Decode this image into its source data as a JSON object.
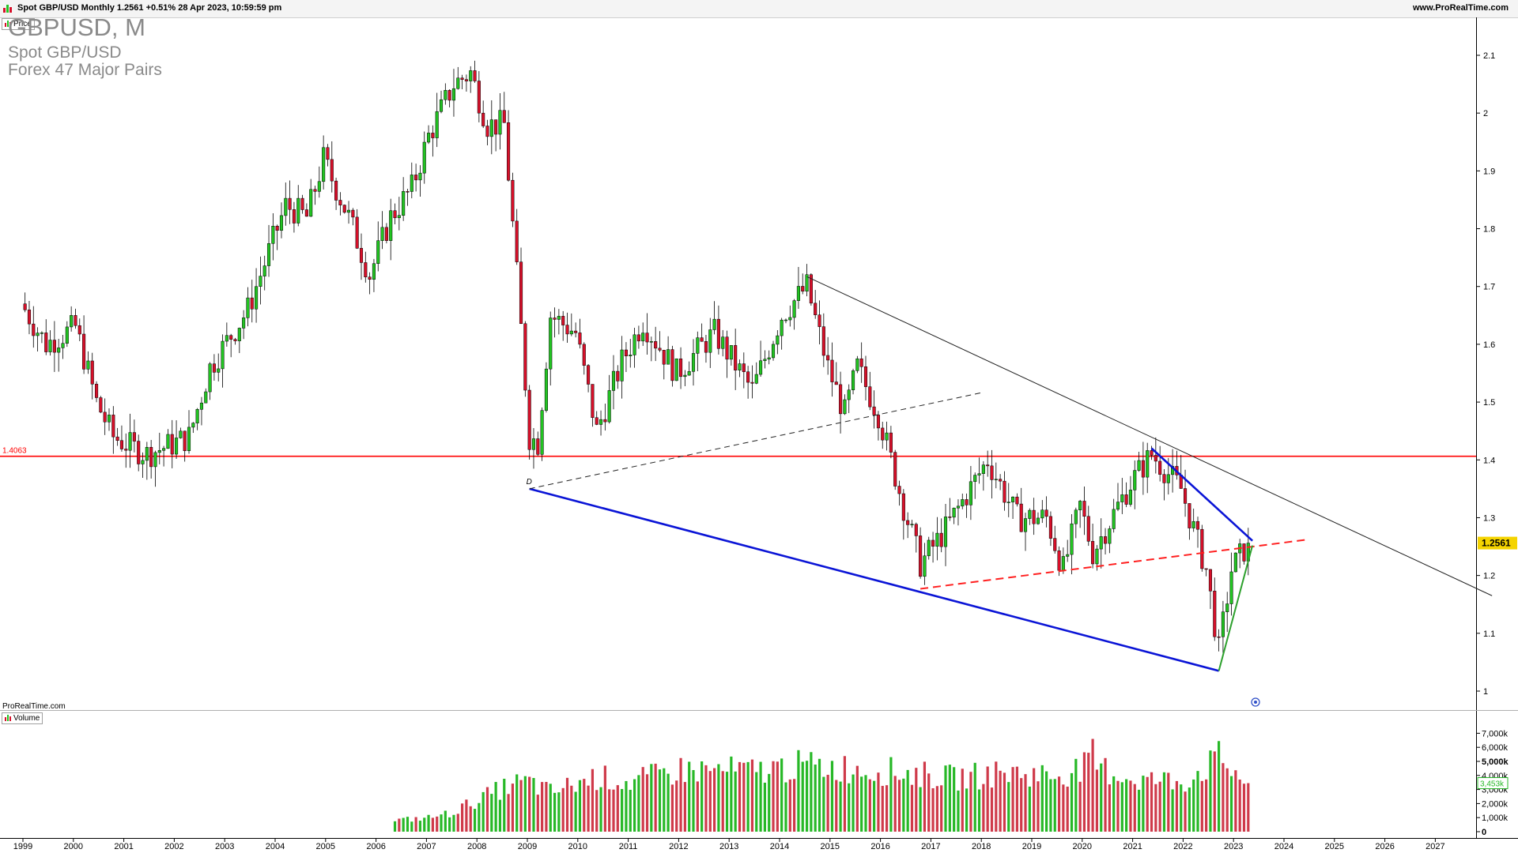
{
  "header": {
    "title": "Spot GBP/USD Monthly 1.2561 +0.51% 28 Apr 2023, 10:59:59 pm",
    "brand": "www.ProRealTime.com"
  },
  "watermark": {
    "symbol": "GBPUSD, M",
    "name": "Spot GBP/USD",
    "group": "Forex 47 Major Pairs"
  },
  "price_panel": {
    "label": "Price"
  },
  "volume_panel": {
    "label": "Volume"
  },
  "footer_brand": "ProRealTime.com",
  "colors": {
    "up": "#22c422",
    "down": "#d8102a",
    "volume_up": "#27b827",
    "volume_down": "#cf3a4a",
    "support": "#ff0000",
    "trend_blue": "#0a14d6",
    "trend_black": "#222222",
    "trend_green": "#2ca02c",
    "dashed_red": "#ff2020",
    "last_price_bg": "#f5d400"
  },
  "chart_data": {
    "type": "candlestick",
    "timeframe": "Monthly",
    "x_range": [
      "1998-12",
      "2027-12"
    ],
    "x_tick_labels": [
      "1999",
      "2000",
      "2001",
      "2002",
      "2003",
      "2004",
      "2005",
      "2006",
      "2007",
      "2008",
      "2009",
      "2010",
      "2011",
      "2012",
      "2013",
      "2014",
      "2015",
      "2016",
      "2017",
      "2018",
      "2019",
      "2020",
      "2021",
      "2022",
      "2023",
      "2024",
      "2025",
      "2026",
      "2027"
    ],
    "y_price_range": [
      0.99,
      2.12
    ],
    "y_price_ticks": [
      1,
      1.1,
      1.2,
      1.3,
      1.4,
      1.5,
      1.6,
      1.7,
      1.8,
      1.9,
      2,
      2.1
    ],
    "y_price_tick_labels": [
      "1",
      "1.1",
      "1.2",
      "1.3",
      "1.4",
      "1.5",
      "1.6",
      "1.7",
      "1.8",
      "1.9",
      "2",
      "2.1"
    ],
    "last_price": 1.2561,
    "last_price_label": "1.2561",
    "support_level": 1.4063,
    "support_label": "1.4063",
    "price_keypoints": [
      [
        "1999-01",
        1.66
      ],
      [
        "1999-06",
        1.6
      ],
      [
        "2000-01",
        1.63
      ],
      [
        "2000-06",
        1.5
      ],
      [
        "2000-10",
        1.44
      ],
      [
        "2001-03",
        1.42
      ],
      [
        "2001-06",
        1.41
      ],
      [
        "2002-01",
        1.43
      ],
      [
        "2002-04",
        1.44
      ],
      [
        "2002-09",
        1.56
      ],
      [
        "2003-06",
        1.66
      ],
      [
        "2003-12",
        1.78
      ],
      [
        "2004-03",
        1.84
      ],
      [
        "2004-08",
        1.82
      ],
      [
        "2004-12",
        1.92
      ],
      [
        "2005-06",
        1.82
      ],
      [
        "2005-11",
        1.72
      ],
      [
        "2006-04",
        1.82
      ],
      [
        "2006-09",
        1.87
      ],
      [
        "2007-01",
        1.96
      ],
      [
        "2007-07",
        2.05
      ],
      [
        "2007-11",
        2.07
      ],
      [
        "2008-03",
        1.98
      ],
      [
        "2008-07",
        1.98
      ],
      [
        "2008-10",
        1.72
      ],
      [
        "2009-01",
        1.44
      ],
      [
        "2009-03",
        1.43
      ],
      [
        "2009-06",
        1.65
      ],
      [
        "2009-12",
        1.62
      ],
      [
        "2010-05",
        1.45
      ],
      [
        "2010-11",
        1.57
      ],
      [
        "2011-04",
        1.64
      ],
      [
        "2011-12",
        1.55
      ],
      [
        "2012-09",
        1.62
      ],
      [
        "2013-06",
        1.52
      ],
      [
        "2014-01",
        1.65
      ],
      [
        "2014-07",
        1.7
      ],
      [
        "2014-12",
        1.56
      ],
      [
        "2015-04",
        1.48
      ],
      [
        "2015-07",
        1.56
      ],
      [
        "2015-12",
        1.48
      ],
      [
        "2016-06",
        1.32
      ],
      [
        "2016-10",
        1.22
      ],
      [
        "2017-04",
        1.28
      ],
      [
        "2017-09",
        1.34
      ],
      [
        "2018-02",
        1.4
      ],
      [
        "2018-09",
        1.3
      ],
      [
        "2019-04",
        1.3
      ],
      [
        "2019-08",
        1.21
      ],
      [
        "2019-12",
        1.32
      ],
      [
        "2020-03",
        1.24
      ],
      [
        "2020-12",
        1.36
      ],
      [
        "2021-05",
        1.41
      ],
      [
        "2021-12",
        1.35
      ],
      [
        "2022-06",
        1.21
      ],
      [
        "2022-09",
        1.07
      ],
      [
        "2022-12",
        1.21
      ],
      [
        "2023-04",
        1.2561
      ]
    ],
    "annotations": [
      {
        "type": "horizontal",
        "y": 1.4063,
        "style": "solid",
        "color": "red"
      },
      {
        "type": "trendline",
        "from": [
          "2014-07",
          1.717
        ],
        "to": [
          "2028-02",
          1.165
        ],
        "color": "black",
        "style": "solid"
      },
      {
        "type": "trendline",
        "from": [
          "2009-01",
          1.35
        ],
        "to": [
          "2022-09",
          1.035
        ],
        "color": "blue",
        "style": "solid"
      },
      {
        "type": "trendline",
        "from": [
          "2021-05",
          1.42
        ],
        "to": [
          "2023-05",
          1.26
        ],
        "color": "blue",
        "style": "solid"
      },
      {
        "type": "trendline",
        "from": [
          "2009-01",
          1.35
        ],
        "to": [
          "2018-01",
          1.517
        ],
        "color": "black",
        "style": "dashed"
      },
      {
        "type": "trendline",
        "from": [
          "2016-10",
          1.177
        ],
        "to": [
          "2024-06",
          1.262
        ],
        "color": "red",
        "style": "dashed"
      },
      {
        "type": "trendline",
        "from": [
          "2022-09",
          1.035
        ],
        "to": [
          "2023-05",
          1.252
        ],
        "color": "green",
        "style": "solid"
      }
    ],
    "markers": [
      "D"
    ],
    "volume": {
      "y_range": [
        0,
        7500
      ],
      "y_ticks": [
        0,
        1000,
        2000,
        3000,
        4000,
        5000,
        6000,
        7000
      ],
      "y_tick_labels": [
        "0",
        "1,000k",
        "2,000k",
        "3,000k",
        "4,000k",
        "5,000k",
        "6,000k",
        "7,000k"
      ],
      "last_value_label": "3,453k",
      "start": "2006-05",
      "keypoints": [
        [
          "2006-05",
          800
        ],
        [
          "2007-01",
          1000
        ],
        [
          "2007-06",
          1300
        ],
        [
          "2008-01",
          2300
        ],
        [
          "2008-09",
          3400
        ],
        [
          "2009-01",
          3500
        ],
        [
          "2009-06",
          2800
        ],
        [
          "2010-05",
          3900
        ],
        [
          "2011-01",
          3500
        ],
        [
          "2012-01",
          4400
        ],
        [
          "2013-06",
          4300
        ],
        [
          "2014-06",
          4700
        ],
        [
          "2015-06",
          4500
        ],
        [
          "2016-06",
          4200
        ],
        [
          "2017-06",
          3800
        ],
        [
          "2018-06",
          4200
        ],
        [
          "2019-06",
          4000
        ],
        [
          "2020-03",
          4700
        ],
        [
          "2021-01",
          3700
        ],
        [
          "2022-01",
          3600
        ],
        [
          "2022-09",
          5200
        ],
        [
          "2023-04",
          3453
        ]
      ]
    }
  }
}
